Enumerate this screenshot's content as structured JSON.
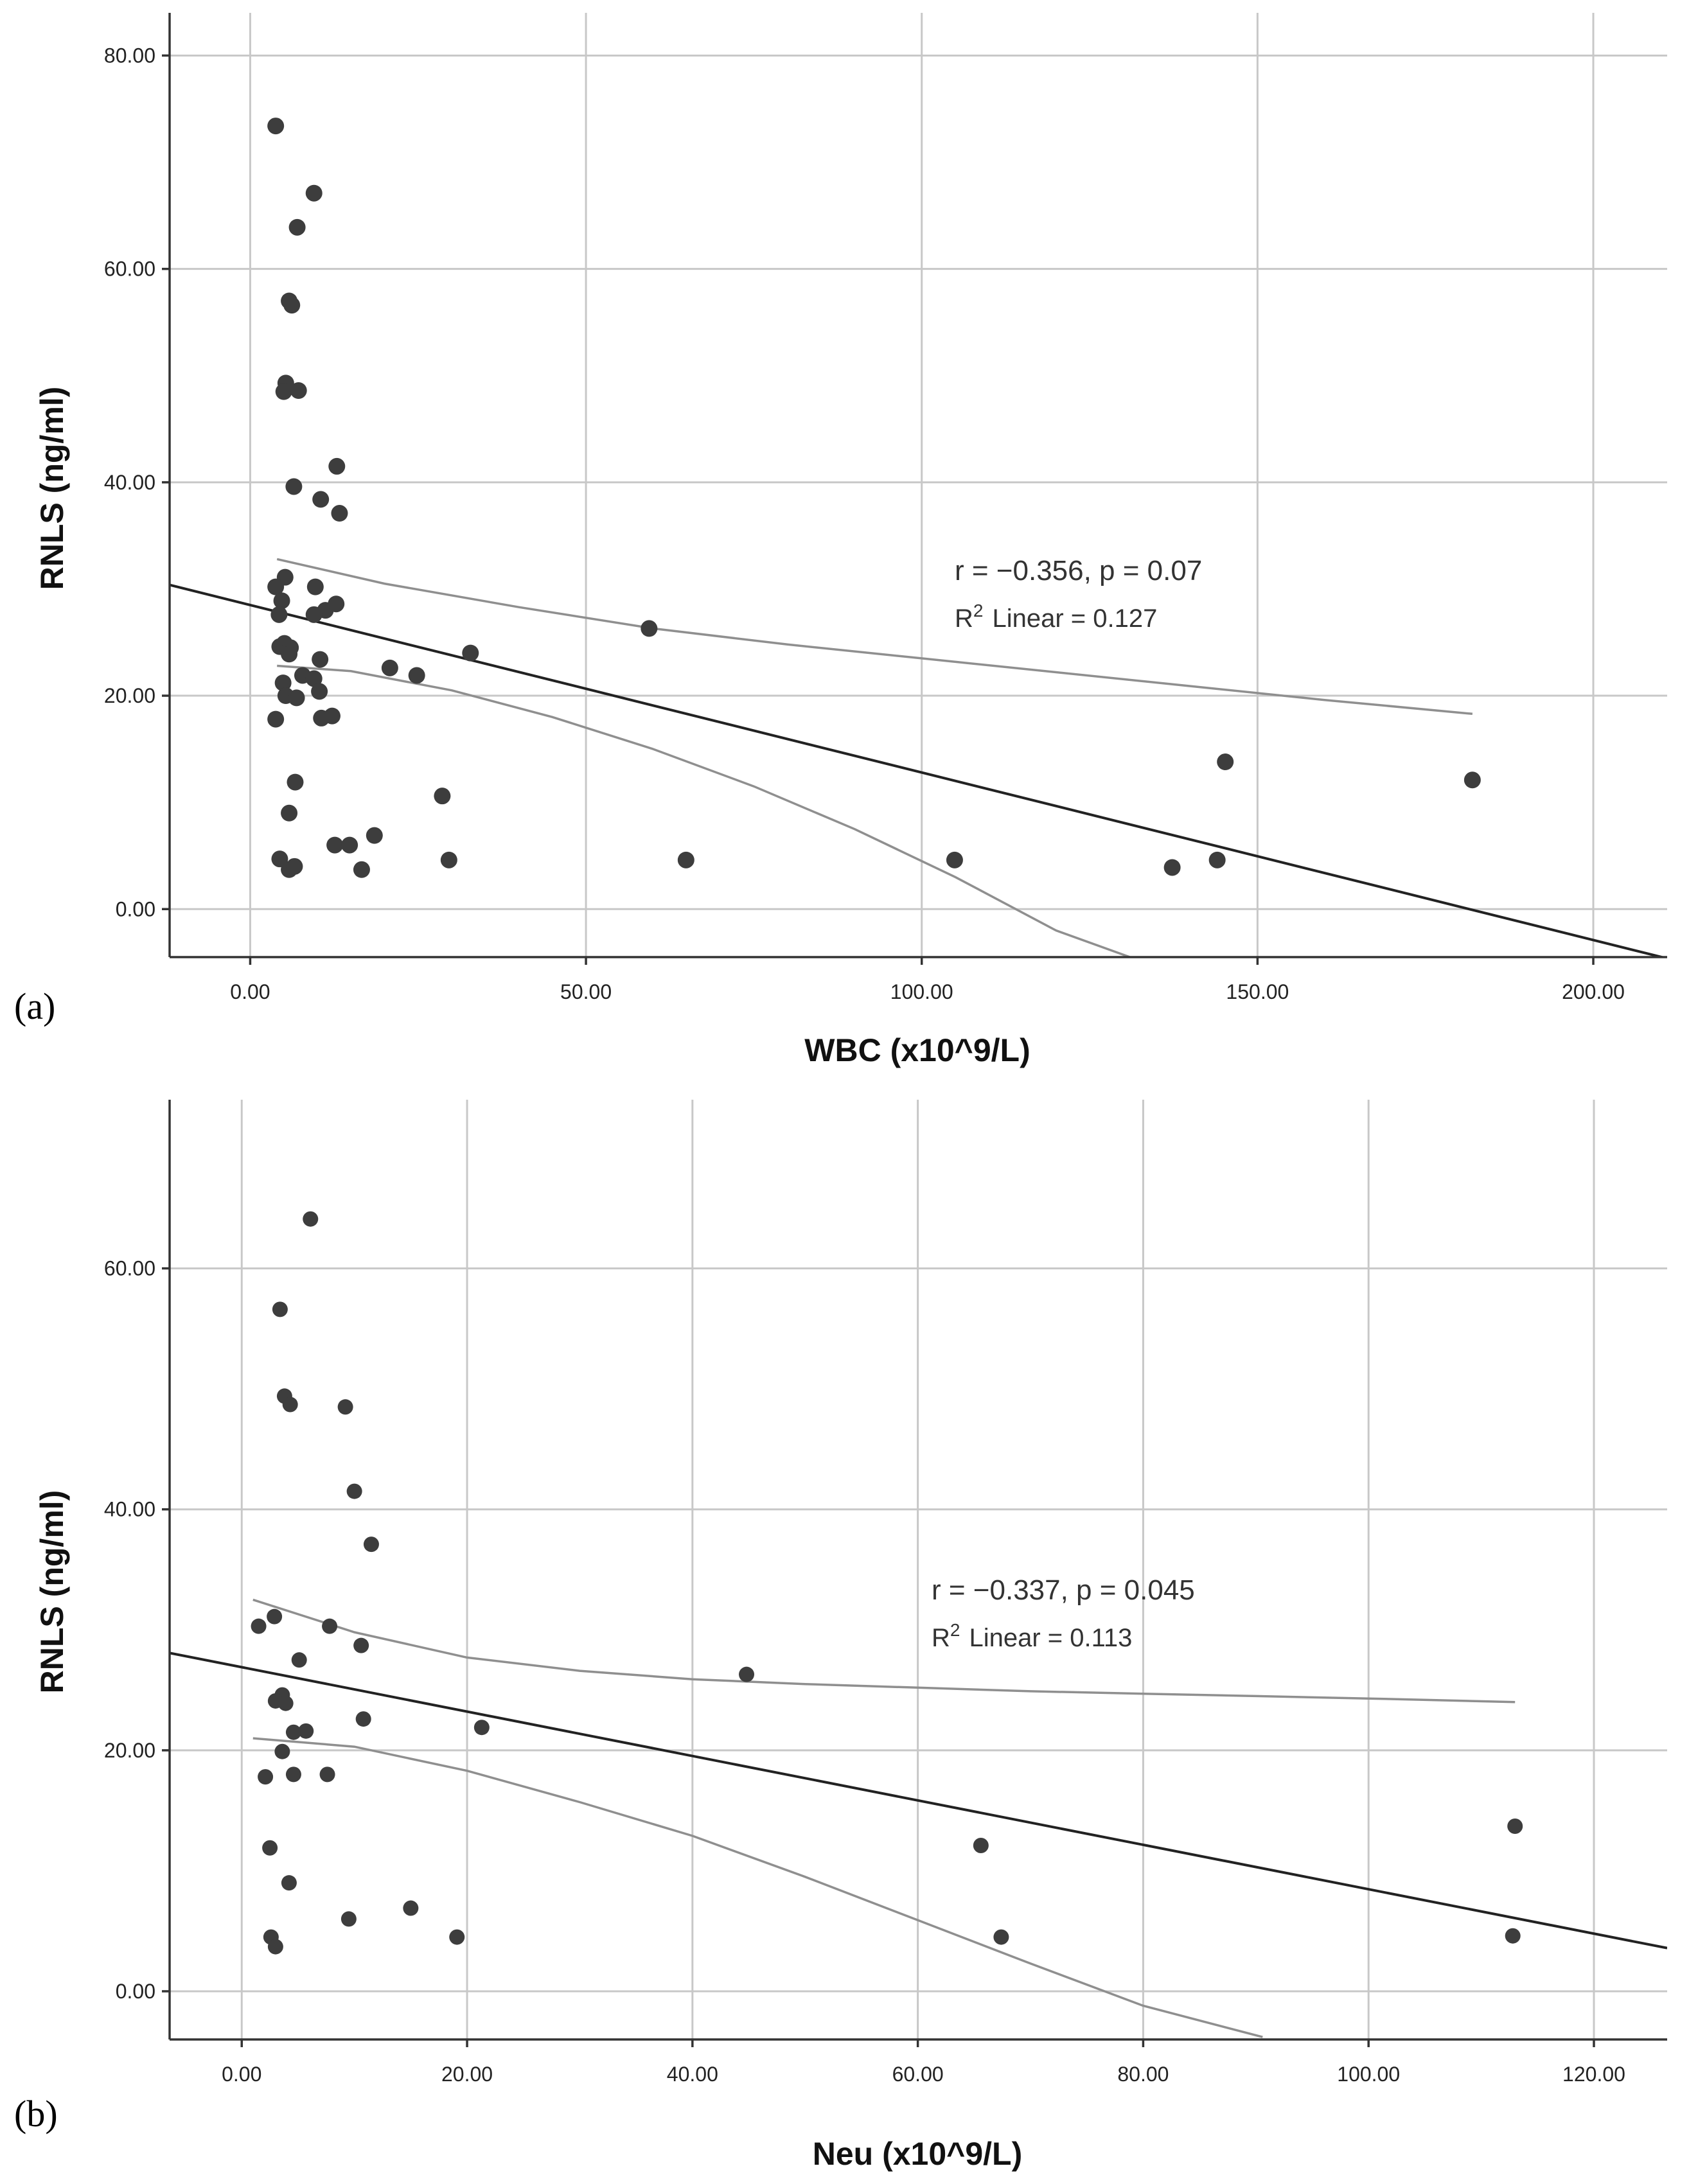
{
  "chart_data": [
    {
      "panel_label": "(a)",
      "type": "scatter",
      "xlabel": "WBC (x10^9/L)",
      "ylabel": "RNLS (ng/ml)",
      "xlim": [
        -12,
        211
      ],
      "ylim": [
        -4.5,
        84
      ],
      "xticks": [
        0,
        50,
        100,
        150,
        200
      ],
      "xtick_labels": [
        "0.00",
        "50.00",
        "100.00",
        "150.00",
        "200.00"
      ],
      "yticks": [
        0,
        20,
        40,
        60,
        80
      ],
      "ytick_labels": [
        "0.00",
        "20.00",
        "40.00",
        "60.00",
        "80.00"
      ],
      "annotation": {
        "stat": "r = −0.356, p = 0.07",
        "r2_prefix": "R",
        "r2_sup": "2",
        "r2_text": "Linear = 0.127"
      },
      "fit_line": {
        "intercept": 28.5,
        "slope": -0.157
      },
      "ci_upper": [
        [
          4,
          32.8
        ],
        [
          20,
          30.5
        ],
        [
          40,
          28.3
        ],
        [
          60,
          26.3
        ],
        [
          80,
          24.8
        ],
        [
          100,
          23.5
        ],
        [
          120,
          22.2
        ],
        [
          140,
          20.9
        ],
        [
          160,
          19.6
        ],
        [
          182,
          18.3
        ]
      ],
      "ci_lower": [
        [
          4,
          22.8
        ],
        [
          15,
          22.3
        ],
        [
          30,
          20.5
        ],
        [
          45,
          18.0
        ],
        [
          60,
          15.0
        ],
        [
          75,
          11.5
        ],
        [
          90,
          7.5
        ],
        [
          105,
          3.0
        ],
        [
          120,
          -2.0
        ],
        [
          131,
          -4.5
        ]
      ],
      "points": [
        [
          3.8,
          73.4
        ],
        [
          9.5,
          67.1
        ],
        [
          7.0,
          63.9
        ],
        [
          5.8,
          57.0
        ],
        [
          6.2,
          56.6
        ],
        [
          5.3,
          49.3
        ],
        [
          5.0,
          48.5
        ],
        [
          7.2,
          48.6
        ],
        [
          12.9,
          41.5
        ],
        [
          6.5,
          39.6
        ],
        [
          10.5,
          38.4
        ],
        [
          13.3,
          37.1
        ],
        [
          5.2,
          31.1
        ],
        [
          3.8,
          30.2
        ],
        [
          9.7,
          30.2
        ],
        [
          4.7,
          28.9
        ],
        [
          11.2,
          28.0
        ],
        [
          12.8,
          28.6
        ],
        [
          4.3,
          27.6
        ],
        [
          9.5,
          27.6
        ],
        [
          4.4,
          24.6
        ],
        [
          5.1,
          24.9
        ],
        [
          6.0,
          24.5
        ],
        [
          5.8,
          23.9
        ],
        [
          10.4,
          23.4
        ],
        [
          20.8,
          22.6
        ],
        [
          24.8,
          21.9
        ],
        [
          32.8,
          24.0
        ],
        [
          59.4,
          26.3
        ],
        [
          4.9,
          21.2
        ],
        [
          7.8,
          21.9
        ],
        [
          9.5,
          21.6
        ],
        [
          5.3,
          20.0
        ],
        [
          6.9,
          19.8
        ],
        [
          10.3,
          20.4
        ],
        [
          3.8,
          17.8
        ],
        [
          10.6,
          17.9
        ],
        [
          12.2,
          18.1
        ],
        [
          6.7,
          11.9
        ],
        [
          5.8,
          9.0
        ],
        [
          28.6,
          10.6
        ],
        [
          18.5,
          6.9
        ],
        [
          12.6,
          6.0
        ],
        [
          14.8,
          6.0
        ],
        [
          4.4,
          4.7
        ],
        [
          5.8,
          3.7
        ],
        [
          6.6,
          4.0
        ],
        [
          16.6,
          3.7
        ],
        [
          29.6,
          4.6
        ],
        [
          64.9,
          4.6
        ],
        [
          104.9,
          4.6
        ],
        [
          137.3,
          3.9
        ],
        [
          144.0,
          4.6
        ],
        [
          145.2,
          13.8
        ],
        [
          182.0,
          12.1
        ]
      ]
    },
    {
      "panel_label": "(b)",
      "type": "scatter",
      "xlabel": "Neu (x10^9/L)",
      "ylabel": "RNLS (ng/ml)",
      "xlim": [
        -6.4,
        126.5
      ],
      "ylim": [
        -4,
        74
      ],
      "xticks": [
        0,
        20,
        40,
        60,
        80,
        100,
        120
      ],
      "xtick_labels": [
        "0.00",
        "20.00",
        "40.00",
        "60.00",
        "80.00",
        "100.00",
        "120.00"
      ],
      "yticks": [
        0,
        20,
        40,
        60
      ],
      "ytick_labels": [
        "0.00",
        "20.00",
        "40.00",
        "60.00"
      ],
      "annotation": {
        "stat": "r = −0.337, p = 0.045",
        "r2_prefix": "R",
        "r2_sup": "2",
        "r2_text": "Linear = 0.113"
      },
      "fit_line": {
        "intercept": 26.9,
        "slope": -0.1843
      },
      "ci_upper": [
        [
          1.0,
          32.5
        ],
        [
          10,
          29.8
        ],
        [
          20,
          27.7
        ],
        [
          30,
          26.6
        ],
        [
          40,
          25.9
        ],
        [
          50,
          25.5
        ],
        [
          60,
          25.2
        ],
        [
          70,
          24.9
        ],
        [
          80,
          24.7
        ],
        [
          90,
          24.5
        ],
        [
          100,
          24.3
        ],
        [
          113,
          24.0
        ]
      ],
      "ci_lower": [
        [
          1.0,
          21.0
        ],
        [
          10,
          20.3
        ],
        [
          20,
          18.3
        ],
        [
          30,
          15.7
        ],
        [
          40,
          12.9
        ],
        [
          50,
          9.5
        ],
        [
          60,
          5.9
        ],
        [
          70,
          2.3
        ],
        [
          80,
          -1.2
        ],
        [
          90.6,
          -3.8
        ]
      ],
      "points": [
        [
          6.1,
          64.1
        ],
        [
          3.4,
          56.6
        ],
        [
          3.8,
          49.4
        ],
        [
          4.3,
          48.7
        ],
        [
          9.2,
          48.5
        ],
        [
          10.0,
          41.5
        ],
        [
          11.5,
          37.1
        ],
        [
          1.5,
          30.3
        ],
        [
          2.9,
          31.1
        ],
        [
          7.8,
          30.3
        ],
        [
          10.6,
          28.7
        ],
        [
          5.1,
          27.5
        ],
        [
          3.6,
          24.6
        ],
        [
          3.0,
          24.1
        ],
        [
          3.9,
          23.9
        ],
        [
          10.8,
          22.6
        ],
        [
          4.6,
          21.5
        ],
        [
          5.7,
          21.6
        ],
        [
          21.3,
          21.9
        ],
        [
          44.8,
          26.3
        ],
        [
          3.6,
          19.9
        ],
        [
          2.1,
          17.8
        ],
        [
          4.6,
          18.0
        ],
        [
          7.6,
          18.0
        ],
        [
          2.5,
          11.9
        ],
        [
          4.2,
          9.0
        ],
        [
          65.6,
          12.1
        ],
        [
          113.0,
          13.7
        ],
        [
          9.5,
          6.0
        ],
        [
          15.0,
          6.9
        ],
        [
          2.6,
          4.5
        ],
        [
          3.0,
          3.7
        ],
        [
          19.1,
          4.5
        ],
        [
          67.4,
          4.5
        ],
        [
          112.8,
          4.6
        ]
      ]
    }
  ]
}
